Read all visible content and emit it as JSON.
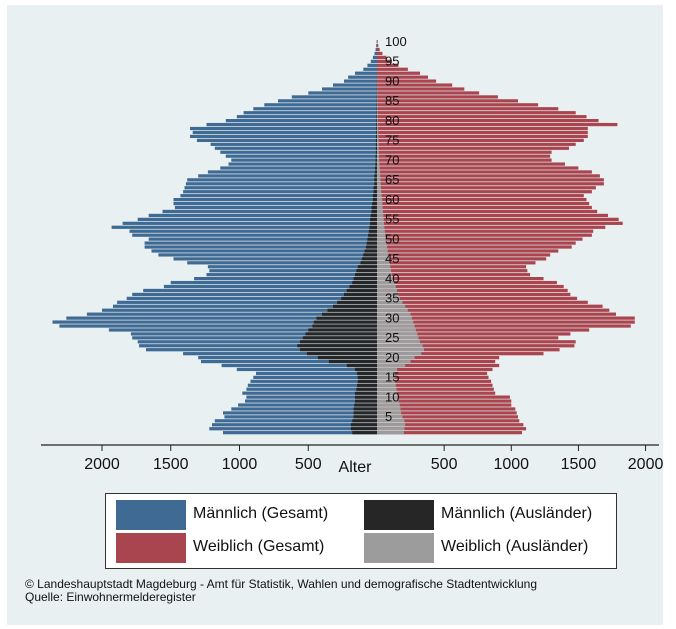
{
  "chart_data": {
    "type": "bar",
    "orientation": "horizontal-population-pyramid",
    "center_label": "Alter",
    "age_ticks": [
      "5",
      "10",
      "15",
      "20",
      "25",
      "30",
      "35",
      "40",
      "45",
      "50",
      "55",
      "60",
      "65",
      "70",
      "75",
      "80",
      "85",
      "90",
      "95",
      "100"
    ],
    "left_axis_ticks": [
      "2000",
      "1500",
      "1000",
      "500"
    ],
    "right_axis_ticks": [
      "500",
      "1000",
      "1500",
      "2000"
    ],
    "xlim_left": [
      0,
      2400
    ],
    "xlim_right": [
      0,
      2100
    ],
    "colors": {
      "maennlich_gesamt": "#3f6a93",
      "weiblich_gesamt": "#a8454f",
      "maennlich_auslaender": "#262626",
      "weiblich_auslaender": "#9c9c9c",
      "background": "#e9f0f2"
    },
    "ages": [
      1,
      2,
      3,
      4,
      5,
      6,
      7,
      8,
      9,
      10,
      11,
      12,
      13,
      14,
      15,
      16,
      17,
      18,
      19,
      20,
      21,
      22,
      23,
      24,
      25,
      26,
      27,
      28,
      29,
      30,
      31,
      32,
      33,
      34,
      35,
      36,
      37,
      38,
      39,
      40,
      41,
      42,
      43,
      44,
      45,
      46,
      47,
      48,
      49,
      50,
      51,
      52,
      53,
      54,
      55,
      56,
      57,
      58,
      59,
      60,
      61,
      62,
      63,
      64,
      65,
      66,
      67,
      68,
      69,
      70,
      71,
      72,
      73,
      74,
      75,
      76,
      77,
      78,
      79,
      80,
      81,
      82,
      83,
      84,
      85,
      86,
      87,
      88,
      89,
      90,
      91,
      92,
      93,
      94,
      95,
      96,
      97,
      98,
      99,
      100
    ],
    "series": [
      {
        "name": "Männlich (Gesamt)",
        "side": "left",
        "values": [
          1120,
          1220,
          1200,
          1180,
          1110,
          1120,
          1060,
          1010,
          960,
          950,
          980,
          950,
          940,
          920,
          900,
          880,
          1020,
          1130,
          1280,
          1300,
          1410,
          1680,
          1730,
          1740,
          1780,
          1790,
          1950,
          2310,
          2360,
          2260,
          2110,
          2000,
          1920,
          1890,
          1820,
          1780,
          1700,
          1550,
          1500,
          1330,
          1240,
          1220,
          1230,
          1380,
          1480,
          1590,
          1640,
          1690,
          1690,
          1660,
          1780,
          1800,
          1930,
          1850,
          1740,
          1660,
          1560,
          1470,
          1480,
          1480,
          1430,
          1410,
          1400,
          1390,
          1380,
          1300,
          1230,
          1140,
          1080,
          1060,
          1100,
          1140,
          1180,
          1210,
          1310,
          1360,
          1340,
          1360,
          1240,
          1100,
          1020,
          970,
          900,
          820,
          720,
          620,
          500,
          400,
          320,
          240,
          210,
          160,
          100,
          70,
          45,
          30,
          18,
          10,
          6,
          3
        ]
      },
      {
        "name": "Weiblich (Gesamt)",
        "side": "right",
        "values": [
          1080,
          1110,
          1090,
          1060,
          1050,
          1040,
          1030,
          1000,
          1000,
          990,
          880,
          870,
          860,
          850,
          830,
          820,
          860,
          910,
          880,
          910,
          1240,
          1360,
          1470,
          1480,
          1350,
          1440,
          1580,
          1890,
          1920,
          1920,
          1780,
          1730,
          1680,
          1570,
          1490,
          1440,
          1420,
          1390,
          1340,
          1240,
          1140,
          1120,
          1110,
          1180,
          1260,
          1290,
          1350,
          1450,
          1480,
          1530,
          1600,
          1610,
          1700,
          1830,
          1800,
          1720,
          1640,
          1600,
          1580,
          1560,
          1540,
          1600,
          1630,
          1690,
          1690,
          1660,
          1600,
          1500,
          1400,
          1300,
          1290,
          1300,
          1430,
          1480,
          1540,
          1570,
          1570,
          1570,
          1790,
          1650,
          1560,
          1480,
          1350,
          1200,
          1050,
          900,
          760,
          650,
          560,
          440,
          380,
          320,
          230,
          160,
          110,
          70,
          40,
          20,
          10,
          5
        ]
      },
      {
        "name": "Männlich (Ausländer)",
        "side": "left",
        "values": [
          180,
          190,
          190,
          180,
          170,
          170,
          170,
          165,
          160,
          160,
          160,
          150,
          145,
          140,
          140,
          145,
          160,
          220,
          350,
          430,
          510,
          560,
          580,
          560,
          540,
          520,
          500,
          470,
          460,
          440,
          400,
          360,
          320,
          290,
          260,
          240,
          220,
          200,
          180,
          170,
          160,
          150,
          140,
          120,
          110,
          100,
          90,
          80,
          75,
          70,
          65,
          60,
          55,
          50,
          50,
          45,
          40,
          40,
          35,
          30,
          30,
          25,
          25,
          20,
          20,
          20,
          15,
          15,
          12,
          10,
          10,
          8,
          8,
          8,
          8,
          7,
          6,
          6,
          5,
          4,
          4,
          3,
          3,
          2,
          2,
          2,
          1,
          1,
          1,
          1,
          1,
          0,
          0,
          0,
          0,
          0,
          0,
          0,
          0,
          0
        ]
      },
      {
        "name": "Weiblich (Ausländer)",
        "side": "right",
        "values": [
          200,
          205,
          210,
          205,
          190,
          180,
          175,
          170,
          160,
          160,
          150,
          145,
          140,
          135,
          130,
          135,
          150,
          210,
          250,
          280,
          330,
          350,
          340,
          320,
          310,
          300,
          290,
          280,
          270,
          260,
          250,
          230,
          210,
          190,
          170,
          160,
          150,
          140,
          130,
          120,
          110,
          105,
          100,
          95,
          90,
          85,
          80,
          75,
          70,
          65,
          60,
          58,
          55,
          52,
          50,
          48,
          45,
          42,
          40,
          38,
          35,
          32,
          30,
          28,
          26,
          24,
          22,
          20,
          18,
          16,
          15,
          14,
          13,
          12,
          11,
          10,
          9,
          8,
          7,
          6,
          5,
          5,
          4,
          3,
          3,
          2,
          2,
          1,
          1,
          1,
          1,
          0,
          0,
          0,
          0,
          0,
          0,
          0,
          0,
          0
        ]
      }
    ]
  },
  "legend": {
    "items": [
      {
        "label": "Männlich (Gesamt)",
        "color": "#3f6a93"
      },
      {
        "label": "Männlich (Ausländer)",
        "color": "#262626"
      },
      {
        "label": "Weiblich (Gesamt)",
        "color": "#a8454f"
      },
      {
        "label": "Weiblich (Ausländer)",
        "color": "#9c9c9c"
      }
    ]
  },
  "credit": {
    "line1": "© Landeshauptstadt Magdeburg - Amt für Statistik, Wahlen und demografische Stadtentwicklung",
    "line2": "Quelle: Einwohnermelderegister"
  }
}
